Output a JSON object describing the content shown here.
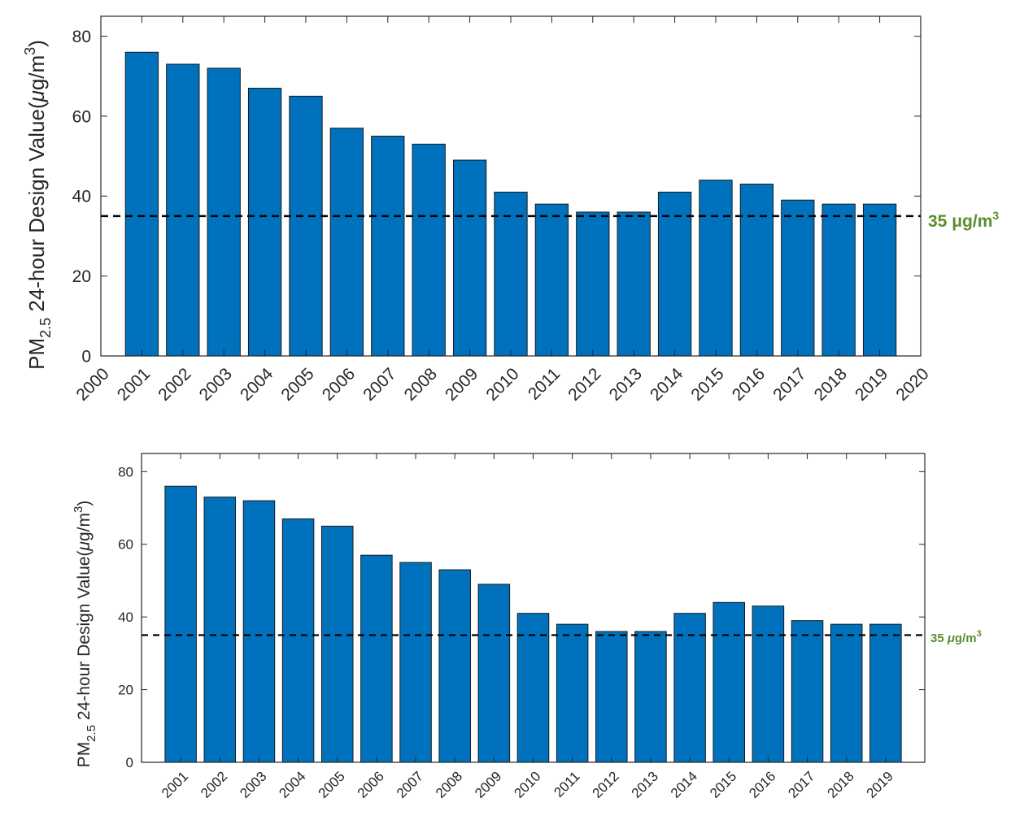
{
  "chart_data": [
    {
      "type": "bar",
      "ylabel": {
        "prefix": "PM",
        "subscript": "2.5",
        "main": " 24-hour Design Value(",
        "mu": "μ",
        "unit": "g/m",
        "sup": "3",
        "close": ")"
      },
      "ylim": [
        0,
        85
      ],
      "xlim": [
        2000,
        2020
      ],
      "y_ticks": [
        "0",
        "20",
        "40",
        "60",
        "80"
      ],
      "x_ticks": [
        "2000",
        "2001",
        "2002",
        "2003",
        "2004",
        "2005",
        "2006",
        "2007",
        "2008",
        "2009",
        "2010",
        "2011",
        "2012",
        "2013",
        "2014",
        "2015",
        "2016",
        "2017",
        "2018",
        "2019",
        "2020"
      ],
      "categories": [
        "2001",
        "2002",
        "2003",
        "2004",
        "2005",
        "2006",
        "2007",
        "2008",
        "2009",
        "2010",
        "2011",
        "2012",
        "2013",
        "2014",
        "2015",
        "2016",
        "2017",
        "2018",
        "2019"
      ],
      "values": [
        76,
        73,
        72,
        67,
        65,
        57,
        55,
        53,
        49,
        41,
        38,
        36,
        36,
        41,
        44,
        43,
        39,
        38,
        38
      ],
      "reference_line": {
        "value": 35,
        "label_main": "35 μg/m",
        "label_sup": "3",
        "style": "dashed"
      },
      "colors": {
        "bar": "#0072BD",
        "reference_label": "#5B8E2F",
        "reference_line": "#000000"
      },
      "grid": false
    },
    {
      "type": "bar",
      "ylabel": {
        "prefix": "PM",
        "subscript": "2.5",
        "main": " 24-hour Design Value(",
        "mu": "μ",
        "unit": "g/m",
        "sup": "3",
        "close": ")"
      },
      "ylim": [
        0,
        85
      ],
      "xlim": [
        2000,
        2020
      ],
      "y_ticks": [
        "0",
        "20",
        "40",
        "60",
        "80"
      ],
      "x_ticks": [
        "2001",
        "2002",
        "2003",
        "2004",
        "2005",
        "2006",
        "2007",
        "2008",
        "2009",
        "2010",
        "2011",
        "2012",
        "2013",
        "2014",
        "2015",
        "2016",
        "2017",
        "2018",
        "2019"
      ],
      "categories": [
        "2001",
        "2002",
        "2003",
        "2004",
        "2005",
        "2006",
        "2007",
        "2008",
        "2009",
        "2010",
        "2011",
        "2012",
        "2013",
        "2014",
        "2015",
        "2016",
        "2017",
        "2018",
        "2019"
      ],
      "values": [
        76,
        73,
        72,
        67,
        65,
        57,
        55,
        53,
        49,
        41,
        38,
        36,
        36,
        41,
        44,
        43,
        39,
        38,
        38
      ],
      "reference_line": {
        "value": 35,
        "label_prefix": "35 ",
        "label_mu": "μ",
        "label_unit": "g/m",
        "label_sup": "3",
        "style": "dashed"
      },
      "colors": {
        "bar": "#0072BD",
        "reference_label": "#5B8E2F",
        "reference_line": "#000000"
      },
      "grid": false
    }
  ]
}
